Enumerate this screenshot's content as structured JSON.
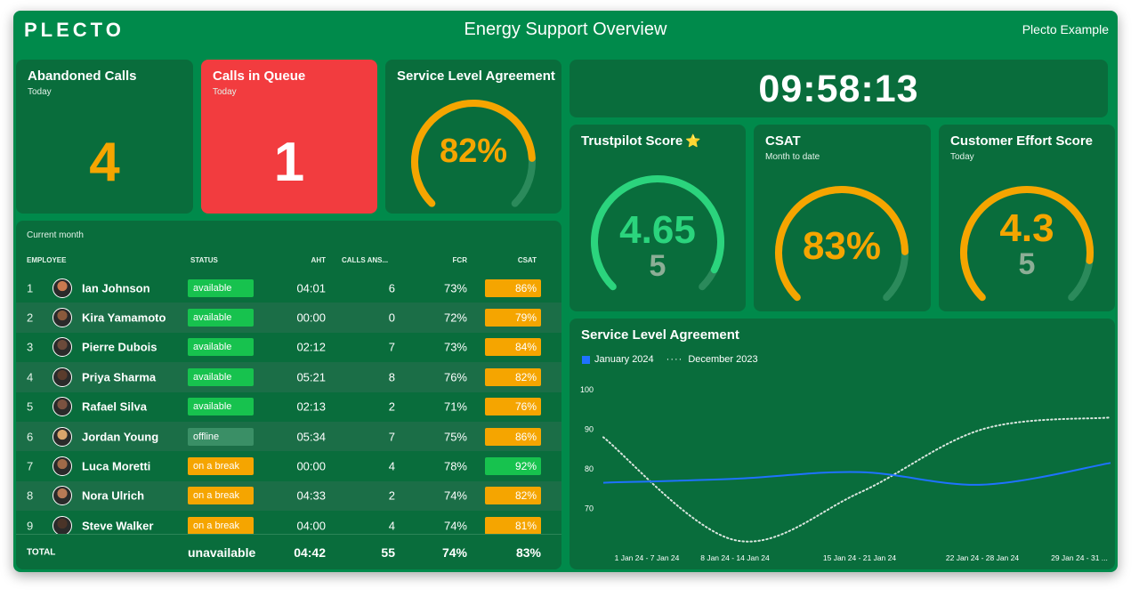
{
  "header": {
    "logo": "PLECTO",
    "title": "Energy Support Overview",
    "account": "Plecto Example"
  },
  "abandoned_calls": {
    "title": "Abandoned Calls",
    "subtitle": "Today",
    "value": "4"
  },
  "calls_in_queue": {
    "title": "Calls in Queue",
    "subtitle": "Today",
    "value": "1"
  },
  "sla_gauge": {
    "title": "Service Level Agreement",
    "value": "82%",
    "fraction": 0.82,
    "color": "#f5a500"
  },
  "clock": {
    "time": "09:58:13"
  },
  "trustpilot": {
    "title": "Trustpilot Score",
    "star": "⭐",
    "value": "4.65",
    "max": "5",
    "fraction": 0.93,
    "color": "#2bd47d"
  },
  "csat": {
    "title": "CSAT",
    "subtitle": "Month to date",
    "value": "83%",
    "fraction": 0.83,
    "color": "#f5a500"
  },
  "ces": {
    "title": "Customer Effort Score",
    "subtitle": "Today",
    "value": "4.3",
    "max": "5",
    "fraction": 0.86,
    "color": "#f5a500"
  },
  "table": {
    "period": "Current month",
    "columns": [
      "EMPLOYEE",
      "STATUS",
      "AHT",
      "CALLS ANS...",
      "FCR",
      "CSAT"
    ],
    "rows": [
      {
        "rank": "1",
        "name": "Ian Johnson",
        "status": "available",
        "aht": "04:01",
        "calls": "6",
        "fcr": "73%",
        "csat": "86%",
        "csat_level": "orange"
      },
      {
        "rank": "2",
        "name": "Kira Yamamoto",
        "status": "available",
        "aht": "00:00",
        "calls": "0",
        "fcr": "72%",
        "csat": "79%",
        "csat_level": "orange"
      },
      {
        "rank": "3",
        "name": "Pierre Dubois",
        "status": "available",
        "aht": "02:12",
        "calls": "7",
        "fcr": "73%",
        "csat": "84%",
        "csat_level": "orange"
      },
      {
        "rank": "4",
        "name": "Priya Sharma",
        "status": "available",
        "aht": "05:21",
        "calls": "8",
        "fcr": "76%",
        "csat": "82%",
        "csat_level": "orange"
      },
      {
        "rank": "5",
        "name": "Rafael Silva",
        "status": "available",
        "aht": "02:13",
        "calls": "2",
        "fcr": "71%",
        "csat": "76%",
        "csat_level": "orange"
      },
      {
        "rank": "6",
        "name": "Jordan Young",
        "status": "offline",
        "aht": "05:34",
        "calls": "7",
        "fcr": "75%",
        "csat": "86%",
        "csat_level": "orange"
      },
      {
        "rank": "7",
        "name": "Luca Moretti",
        "status": "on a break",
        "aht": "00:00",
        "calls": "4",
        "fcr": "78%",
        "csat": "92%",
        "csat_level": "green"
      },
      {
        "rank": "8",
        "name": "Nora Ulrich",
        "status": "on a break",
        "aht": "04:33",
        "calls": "2",
        "fcr": "74%",
        "csat": "82%",
        "csat_level": "orange"
      },
      {
        "rank": "9",
        "name": "Steve Walker",
        "status": "on a break",
        "aht": "04:00",
        "calls": "4",
        "fcr": "74%",
        "csat": "81%",
        "csat_level": "orange"
      }
    ],
    "total": {
      "label": "TOTAL",
      "status": "unavailable",
      "aht": "04:42",
      "calls": "55",
      "fcr": "74%",
      "csat": "83%"
    }
  },
  "chart_data": {
    "type": "line",
    "title": "Service Level Agreement",
    "categories": [
      "1 Jan 24 - 7 Jan 24",
      "8 Jan 24 - 14 Jan 24",
      "15 Jan 24 - 21 Jan 24",
      "22 Jan 24 - 28 Jan 24",
      "29 Jan 24 - 31 ..."
    ],
    "series": [
      {
        "name": "January 2024",
        "values": [
          76.5,
          77.5,
          79.2,
          76,
          81.5
        ],
        "color": "#1f72ff",
        "style": "solid"
      },
      {
        "name": "December 2023",
        "values": [
          88,
          62,
          74,
          90,
          93
        ],
        "color": "#d9e6de",
        "style": "dotted"
      }
    ],
    "yticks": [
      100,
      90,
      80,
      70
    ],
    "ylim": [
      60,
      100
    ],
    "legend": "top-left",
    "grid": false
  }
}
